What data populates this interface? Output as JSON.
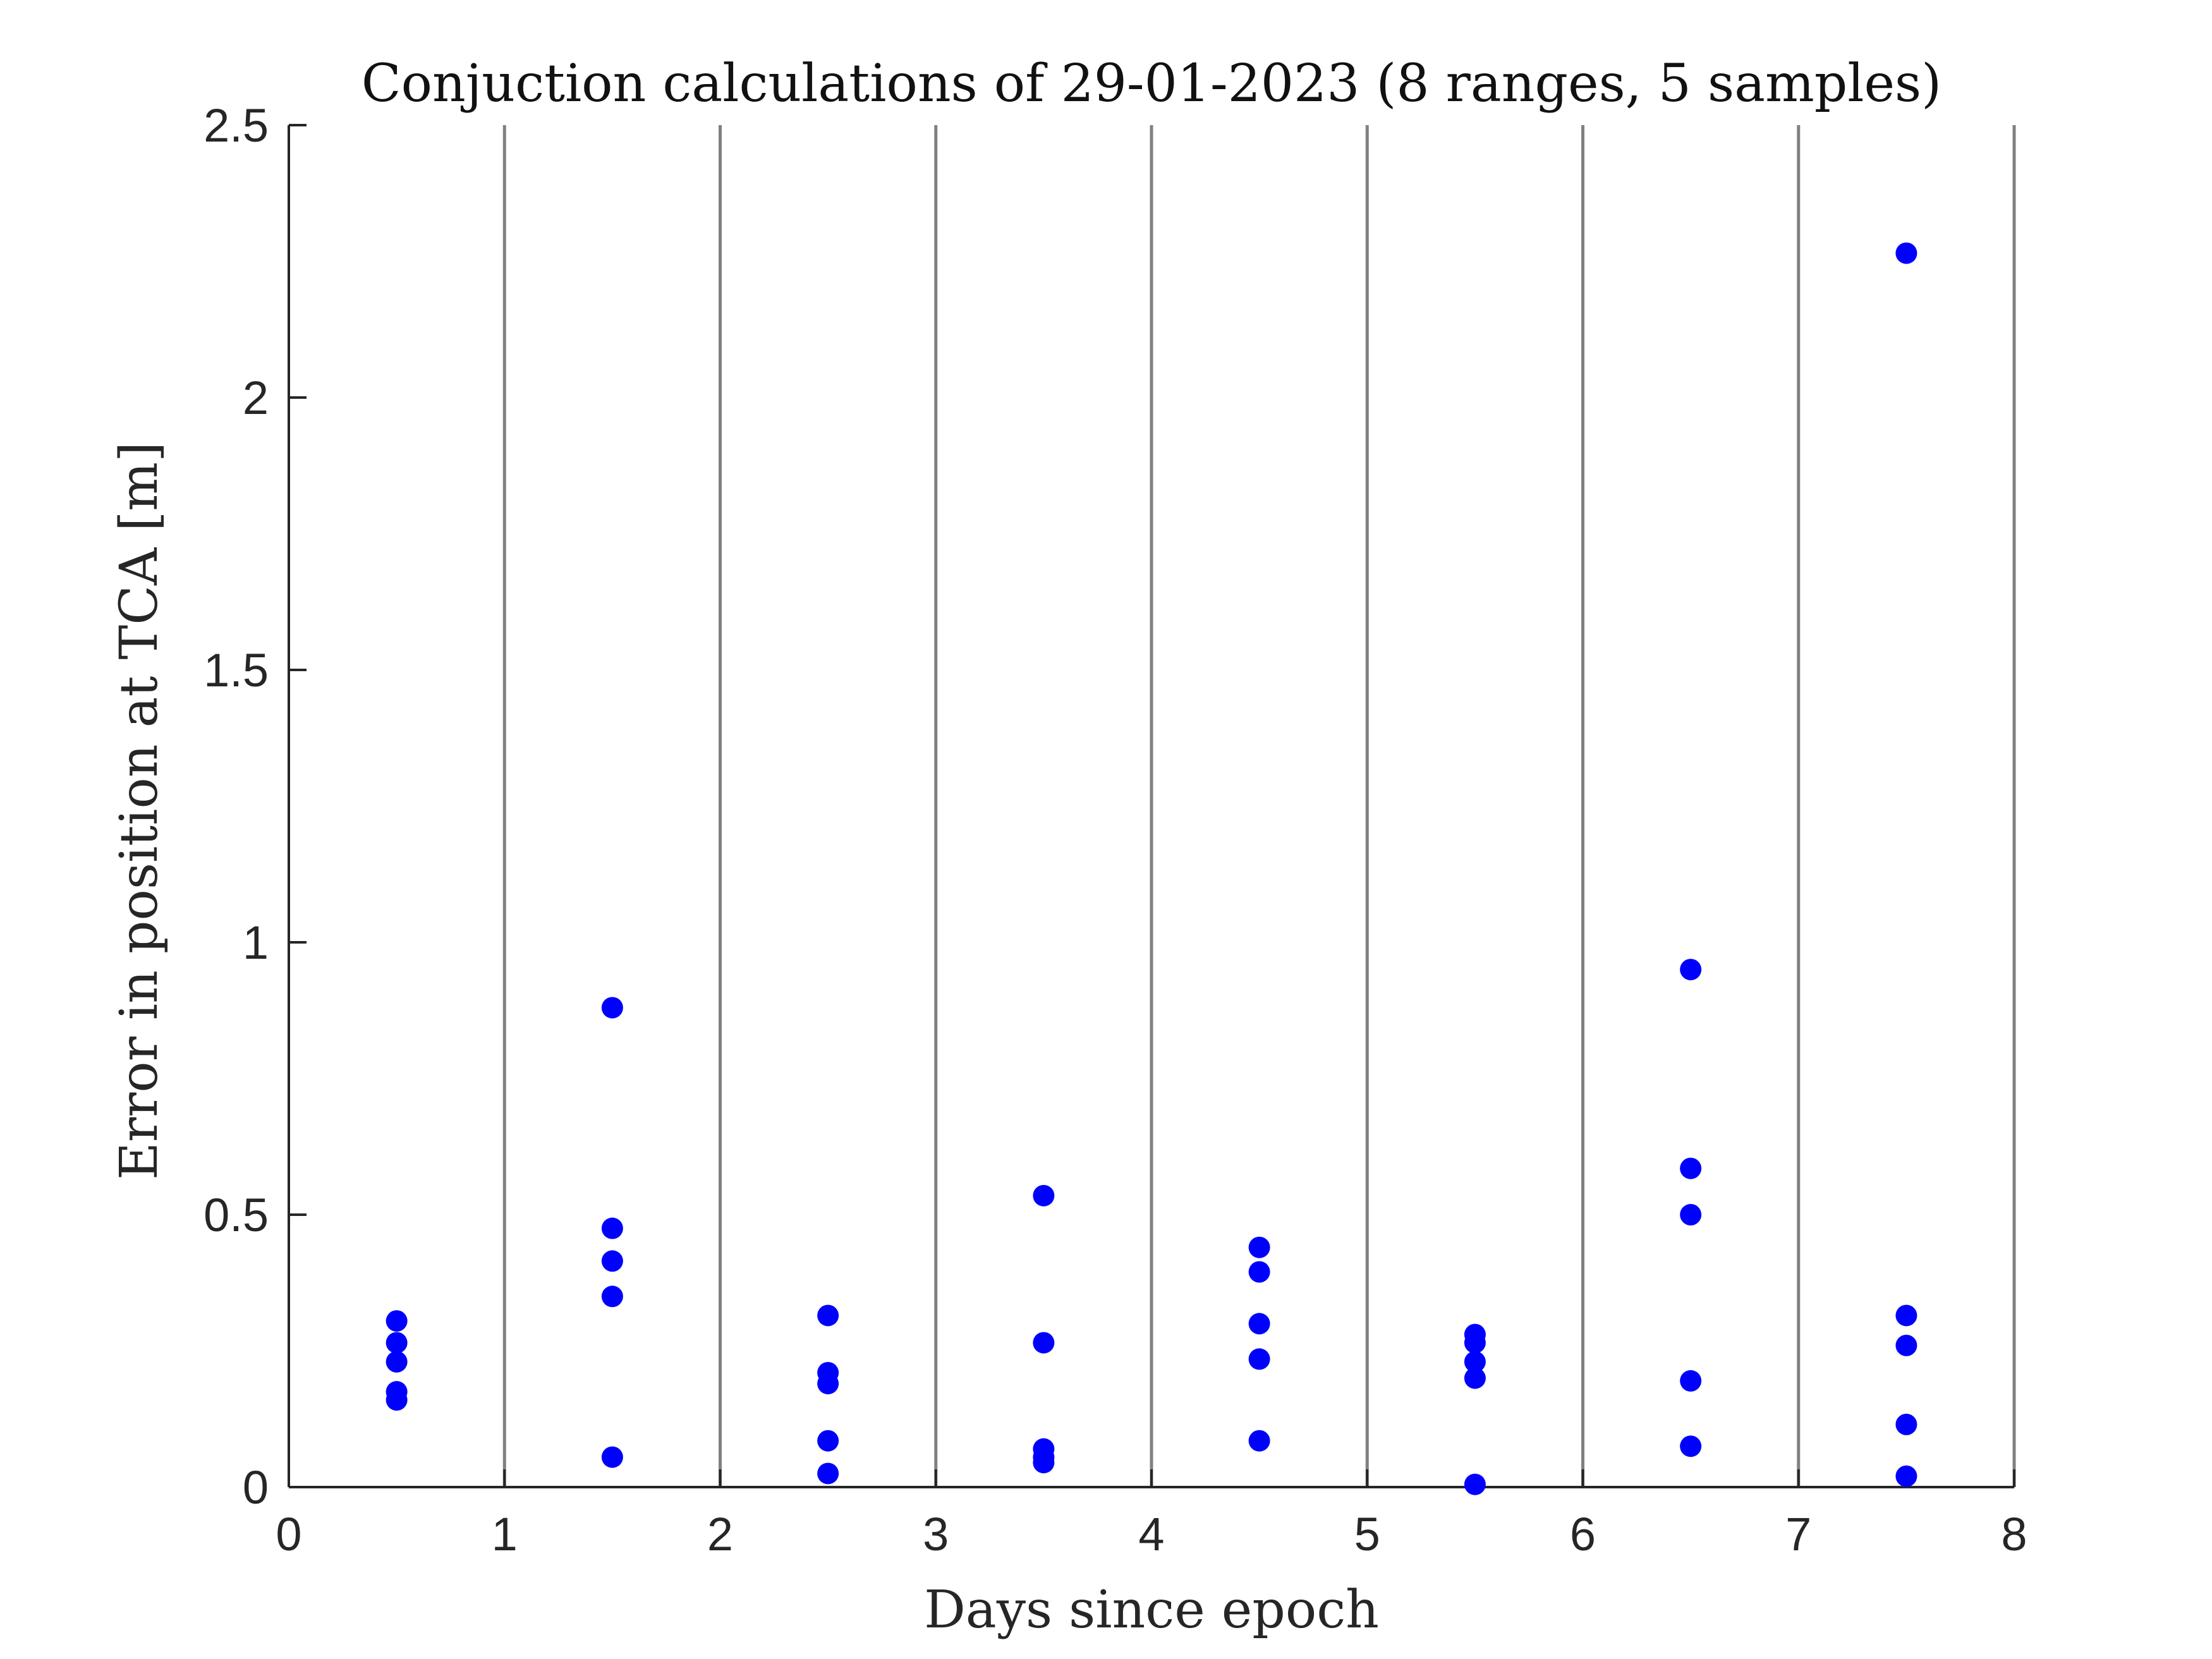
{
  "chart_data": {
    "type": "scatter",
    "title": "Conjuction calculations of 29-01-2023 (8 ranges, 5 samples)",
    "xlabel": "Days since epoch",
    "ylabel": "Error in position at TCA [m]",
    "xlim": [
      0,
      8
    ],
    "ylim": [
      0,
      2.5
    ],
    "xticks": [
      "0",
      "1",
      "2",
      "3",
      "4",
      "5",
      "6",
      "7",
      "8"
    ],
    "yticks": [
      "0",
      "0.5",
      "1",
      "1.5",
      "2",
      "2.5"
    ],
    "grid": "vertical lines at each integer day",
    "series": [
      {
        "color": "#0000ff",
        "points": [
          {
            "x": 0.5,
            "y": 0.305
          },
          {
            "x": 0.5,
            "y": 0.265
          },
          {
            "x": 0.5,
            "y": 0.23
          },
          {
            "x": 0.5,
            "y": 0.175
          },
          {
            "x": 0.5,
            "y": 0.16
          },
          {
            "x": 1.5,
            "y": 0.88
          },
          {
            "x": 1.5,
            "y": 0.475
          },
          {
            "x": 1.5,
            "y": 0.415
          },
          {
            "x": 1.5,
            "y": 0.35
          },
          {
            "x": 1.5,
            "y": 0.055
          },
          {
            "x": 2.5,
            "y": 0.315
          },
          {
            "x": 2.5,
            "y": 0.21
          },
          {
            "x": 2.5,
            "y": 0.19
          },
          {
            "x": 2.5,
            "y": 0.085
          },
          {
            "x": 2.5,
            "y": 0.025
          },
          {
            "x": 3.5,
            "y": 0.535
          },
          {
            "x": 3.5,
            "y": 0.265
          },
          {
            "x": 3.5,
            "y": 0.07
          },
          {
            "x": 3.5,
            "y": 0.055
          },
          {
            "x": 3.5,
            "y": 0.045
          },
          {
            "x": 4.5,
            "y": 0.44
          },
          {
            "x": 4.5,
            "y": 0.395
          },
          {
            "x": 4.5,
            "y": 0.3
          },
          {
            "x": 4.5,
            "y": 0.235
          },
          {
            "x": 4.5,
            "y": 0.085
          },
          {
            "x": 5.5,
            "y": 0.28
          },
          {
            "x": 5.5,
            "y": 0.265
          },
          {
            "x": 5.5,
            "y": 0.23
          },
          {
            "x": 5.5,
            "y": 0.2
          },
          {
            "x": 5.5,
            "y": 0.005
          },
          {
            "x": 6.5,
            "y": 0.95
          },
          {
            "x": 6.5,
            "y": 0.585
          },
          {
            "x": 6.5,
            "y": 0.5
          },
          {
            "x": 6.5,
            "y": 0.195
          },
          {
            "x": 6.5,
            "y": 0.075
          },
          {
            "x": 7.5,
            "y": 2.265
          },
          {
            "x": 7.5,
            "y": 0.315
          },
          {
            "x": 7.5,
            "y": 0.26
          },
          {
            "x": 7.5,
            "y": 0.115
          },
          {
            "x": 7.5,
            "y": 0.02
          }
        ]
      }
    ]
  }
}
